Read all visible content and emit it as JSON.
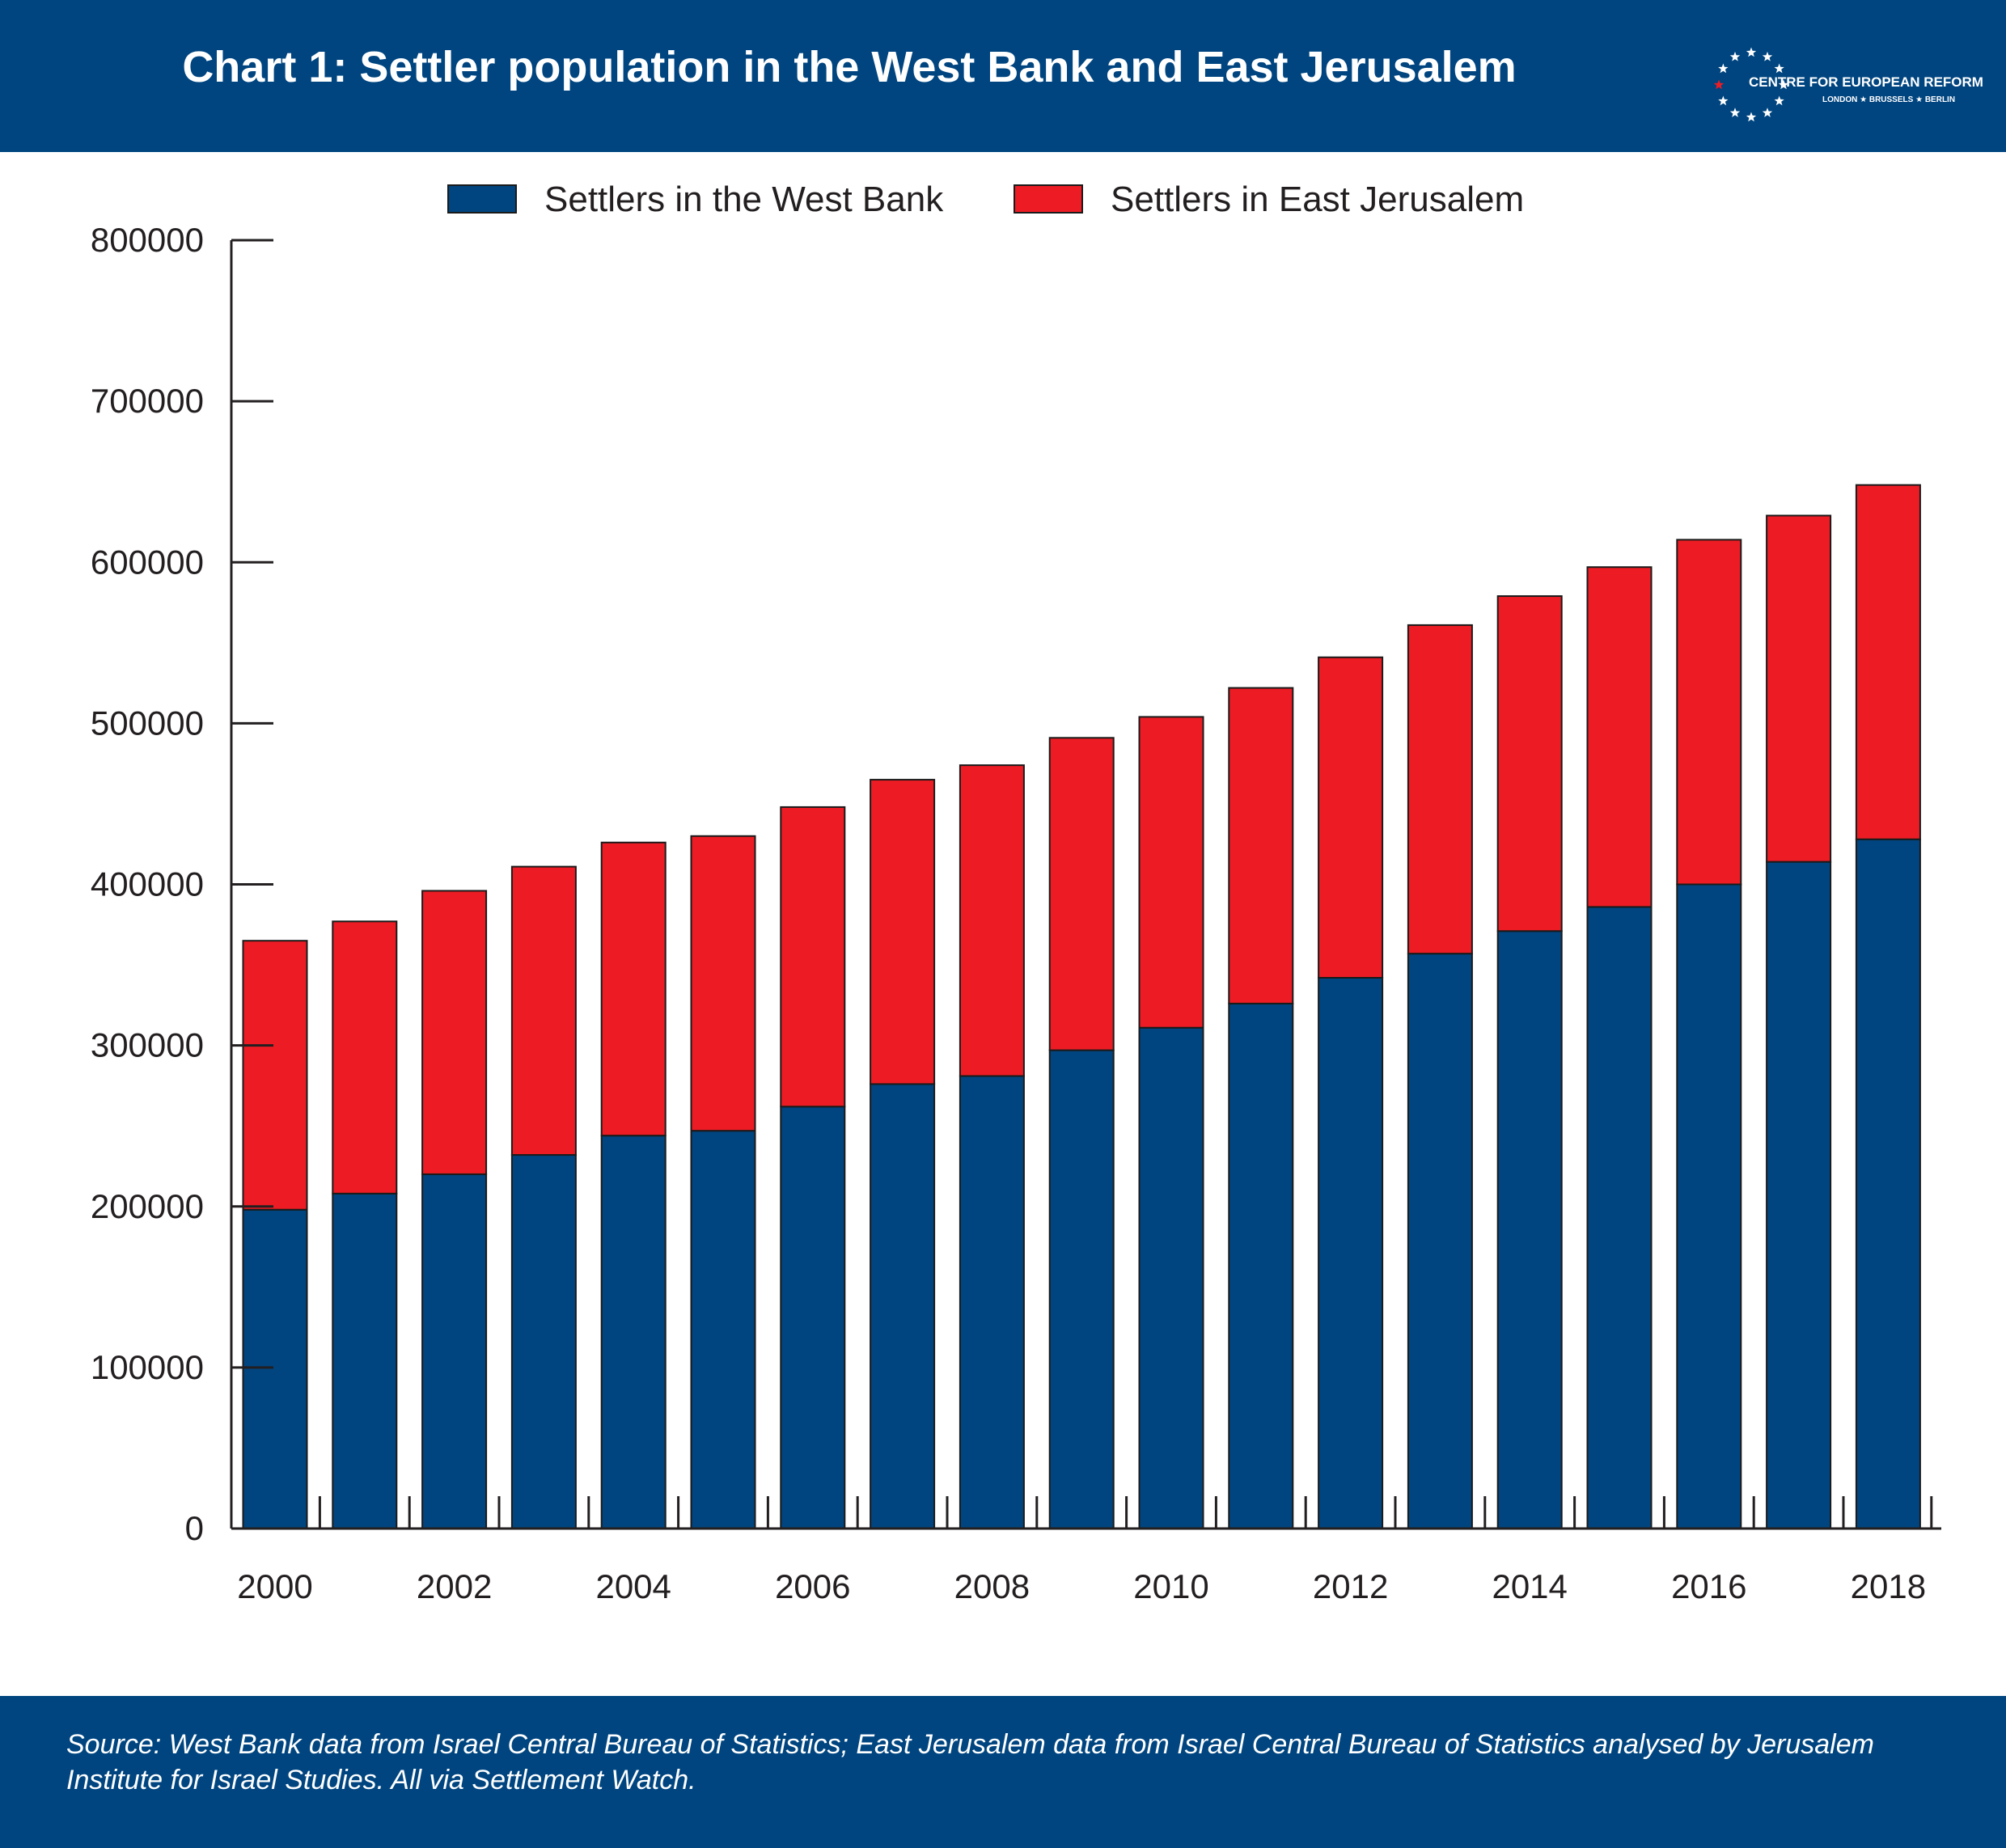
{
  "header": {
    "title": "Chart 1: Settler population in the West Bank and East Jerusalem",
    "logo_name": "CENTRE FOR EUROPEAN REFORM",
    "logo_cities": "LONDON ★ BRUSSELS ★ BERLIN"
  },
  "footer": {
    "source": "Source: West Bank data from Israel Central Bureau of Statistics; East Jerusalem data from Israel Central Bureau of Statistics analysed by Jerusalem Institute for Israel Studies. All via Settlement Watch."
  },
  "colors": {
    "brand": "#004580",
    "west_bank": "#004580",
    "east_jerusalem": "#ed1c24",
    "axis": "#231f20"
  },
  "chart_data": {
    "type": "bar",
    "stacked": true,
    "title": "Chart 1: Settler population in the West Bank and East Jerusalem",
    "xlabel": "",
    "ylabel": "",
    "ylim": [
      0,
      800000
    ],
    "yticks": [
      0,
      100000,
      200000,
      300000,
      400000,
      500000,
      600000,
      700000,
      800000
    ],
    "ytick_labels": [
      "0",
      "100000",
      "200000",
      "300000",
      "400000",
      "500000",
      "600000",
      "700000",
      "800000"
    ],
    "categories": [
      "2000",
      "2001",
      "2002",
      "2003",
      "2004",
      "2005",
      "2006",
      "2007",
      "2008",
      "2009",
      "2010",
      "2011",
      "2012",
      "2013",
      "2014",
      "2015",
      "2016",
      "2017",
      "2018"
    ],
    "xtick_labels": [
      "2000",
      "",
      "2002",
      "",
      "2004",
      "",
      "2006",
      "",
      "2008",
      "",
      "2010",
      "",
      "2012",
      "",
      "2014",
      "",
      "2016",
      "",
      "2018"
    ],
    "legend_position": "top-center",
    "grid": false,
    "series": [
      {
        "name": "Settlers in the West Bank",
        "values": [
          198000,
          208000,
          220000,
          232000,
          244000,
          247000,
          262000,
          276000,
          281000,
          297000,
          311000,
          326000,
          342000,
          357000,
          371000,
          386000,
          400000,
          414000,
          428000
        ]
      },
      {
        "name": "Settlers in East Jerusalem",
        "values": [
          167000,
          169000,
          176000,
          179000,
          182000,
          183000,
          186000,
          189000,
          193000,
          194000,
          193000,
          196000,
          199000,
          204000,
          208000,
          211000,
          214000,
          215000,
          220000
        ]
      }
    ]
  }
}
